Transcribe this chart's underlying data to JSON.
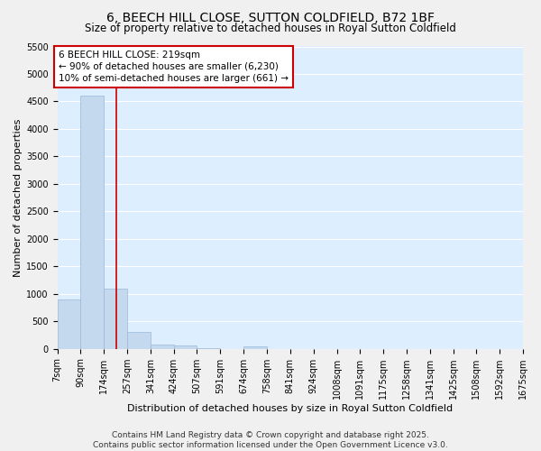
{
  "title": "6, BEECH HILL CLOSE, SUTTON COLDFIELD, B72 1BF",
  "subtitle": "Size of property relative to detached houses in Royal Sutton Coldfield",
  "xlabel": "Distribution of detached houses by size in Royal Sutton Coldfield",
  "ylabel": "Number of detached properties",
  "footer_line1": "Contains HM Land Registry data © Crown copyright and database right 2025.",
  "footer_line2": "Contains public sector information licensed under the Open Government Licence v3.0.",
  "annotation_line1": "6 BEECH HILL CLOSE: 219sqm",
  "annotation_line2": "← 90% of detached houses are smaller (6,230)",
  "annotation_line3": "10% of semi-detached houses are larger (661) →",
  "property_size": 219,
  "bin_edges": [
    7,
    90,
    174,
    257,
    341,
    424,
    507,
    591,
    674,
    758,
    841,
    924,
    1008,
    1091,
    1175,
    1258,
    1341,
    1425,
    1508,
    1592,
    1675
  ],
  "bar_heights": [
    900,
    4600,
    1100,
    300,
    80,
    60,
    20,
    0,
    50,
    0,
    0,
    0,
    0,
    0,
    0,
    0,
    0,
    0,
    0,
    0
  ],
  "bar_color": "#c5d9ee",
  "bar_edge_color": "#9ab8d8",
  "red_line_color": "#cc0000",
  "annotation_box_edge_color": "#cc0000",
  "fig_bg_color": "#f0f0f0",
  "plot_bg_color": "#ddeeff",
  "grid_color": "#ffffff",
  "ylim": [
    0,
    5500
  ],
  "title_fontsize": 10,
  "subtitle_fontsize": 8.5,
  "axis_label_fontsize": 8,
  "tick_fontsize": 7,
  "annotation_fontsize": 7.5,
  "footer_fontsize": 6.5
}
